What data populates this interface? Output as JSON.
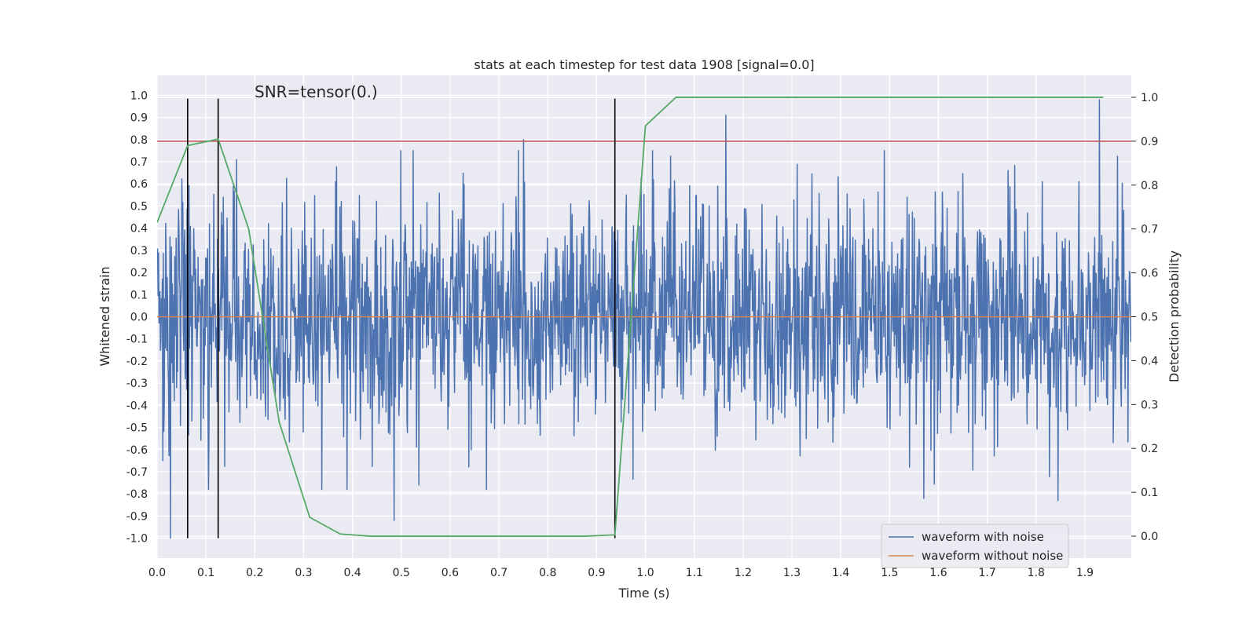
{
  "chart_data": {
    "type": "line",
    "title": "stats at each timestep for test data 1908 [signal=0.0]",
    "xlabel": "Time (s)",
    "ylabel": "Whitened strain",
    "y2label": "Detection probability",
    "annotation": "SNR=tensor(0.)",
    "xlim": [
      0.0,
      1.995
    ],
    "ylim": [
      -1.09,
      1.09
    ],
    "y2lim": [
      -0.05,
      1.05
    ],
    "xticks": [
      "0.0",
      "0.1",
      "0.2",
      "0.3",
      "0.4",
      "0.5",
      "0.6",
      "0.7",
      "0.8",
      "0.9",
      "1.0",
      "1.1",
      "1.2",
      "1.3",
      "1.4",
      "1.5",
      "1.6",
      "1.7",
      "1.8",
      "1.9"
    ],
    "yticks": [
      "1.0",
      "0.9",
      "0.8",
      "0.7",
      "0.6",
      "0.5",
      "0.4",
      "0.3",
      "0.2",
      "0.1",
      "0.0",
      "-0.1",
      "-0.2",
      "-0.3",
      "-0.4",
      "-0.5",
      "-0.6",
      "-0.7",
      "-0.8",
      "-0.9",
      "-1.0"
    ],
    "y2ticks": [
      "1.0",
      "0.9",
      "0.8",
      "0.7",
      "0.6",
      "0.5",
      "0.4",
      "0.3",
      "0.2",
      "0.1",
      "0.0"
    ],
    "grid": true,
    "legend_position": "bottom-right",
    "legend": [
      {
        "label": "waveform with noise",
        "color": "#4c72b0"
      },
      {
        "label": "waveform without noise",
        "color": "#dd8452"
      }
    ],
    "noise_series": {
      "name": "waveform with noise",
      "color": "#4c72b0",
      "x_start": 0.0,
      "x_end": 1.995,
      "samples": 2048,
      "amplitude_std": 0.25,
      "visible_extremes": [
        {
          "x": 0.027,
          "y": -1.0
        },
        {
          "x": 0.485,
          "y": -0.92
        },
        {
          "x": 0.75,
          "y": 0.8
        },
        {
          "x": 1.165,
          "y": 0.91
        },
        {
          "x": 1.57,
          "y": -0.82
        },
        {
          "x": 1.845,
          "y": -0.83
        },
        {
          "x": 1.93,
          "y": 0.98
        }
      ]
    },
    "clean_series": {
      "name": "waveform without noise",
      "color": "#dd8452",
      "x": [
        0.0,
        1.995
      ],
      "y": [
        0.0,
        0.0
      ]
    },
    "probability_series": {
      "name": "detection probability",
      "color": "#55a868",
      "axis": "right",
      "x": [
        0.0,
        0.0625,
        0.125,
        0.1875,
        0.25,
        0.3125,
        0.375,
        0.4375,
        0.5,
        0.5625,
        0.625,
        0.6875,
        0.75,
        0.8125,
        0.875,
        0.9375,
        1.0,
        1.0625,
        1.125,
        1.1875,
        1.25,
        1.3125,
        1.375,
        1.4375,
        1.5,
        1.5625,
        1.625,
        1.6875,
        1.75,
        1.8125,
        1.875,
        1.9375
      ],
      "y": [
        0.715,
        0.89,
        0.905,
        0.7,
        0.26,
        0.043,
        0.005,
        0.0,
        0.0,
        0.0,
        0.0,
        0.0,
        0.0,
        0.0,
        0.0,
        0.003,
        0.935,
        1.0,
        1.0,
        1.0,
        1.0,
        1.0,
        1.0,
        1.0,
        1.0,
        1.0,
        1.0,
        1.0,
        1.0,
        1.0,
        1.0,
        1.0
      ]
    },
    "threshold": {
      "axis": "right",
      "value": 0.9,
      "color": "#c44e52"
    },
    "detection_markers": {
      "x": [
        0.0625,
        0.125,
        0.9375
      ],
      "y_range": [
        -1.0,
        0.985
      ],
      "color": "#000000"
    }
  }
}
